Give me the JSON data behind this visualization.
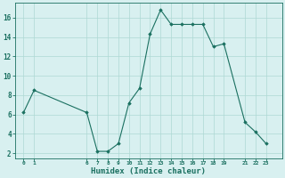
{
  "x": [
    0,
    1,
    6,
    7,
    8,
    9,
    10,
    11,
    12,
    13,
    14,
    15,
    16,
    17,
    18,
    19,
    21,
    22,
    23
  ],
  "y": [
    6.2,
    8.5,
    6.2,
    2.2,
    2.2,
    3.0,
    7.2,
    8.7,
    14.3,
    16.8,
    15.3,
    15.3,
    15.3,
    15.3,
    13.0,
    13.3,
    5.2,
    4.2,
    3.0
  ],
  "xtick_vals": [
    0,
    1,
    6,
    7,
    8,
    9,
    10,
    11,
    12,
    13,
    14,
    15,
    16,
    17,
    18,
    19,
    21,
    22,
    23
  ],
  "xtick_labels": [
    "0",
    "1",
    "6",
    "7",
    "8",
    "9",
    "10",
    "11",
    "12",
    "13",
    "14",
    "15",
    "16",
    "17",
    "18",
    "19",
    "21",
    "22",
    "23"
  ],
  "ytick_vals": [
    2,
    4,
    6,
    8,
    10,
    12,
    14,
    16
  ],
  "ytick_labels": [
    "2",
    "4",
    "6",
    "8",
    "10",
    "12",
    "14",
    "16"
  ],
  "xlabel": "Humidex (Indice chaleur)",
  "ylim": [
    1.5,
    17.5
  ],
  "xlim": [
    -0.8,
    24.5
  ],
  "line_color": "#1a7060",
  "marker_color": "#1a7060",
  "bg_color": "#d8f0f0",
  "grid_color": "#aed8d4",
  "fig_width": 3.2,
  "fig_height": 2.0,
  "dpi": 100
}
